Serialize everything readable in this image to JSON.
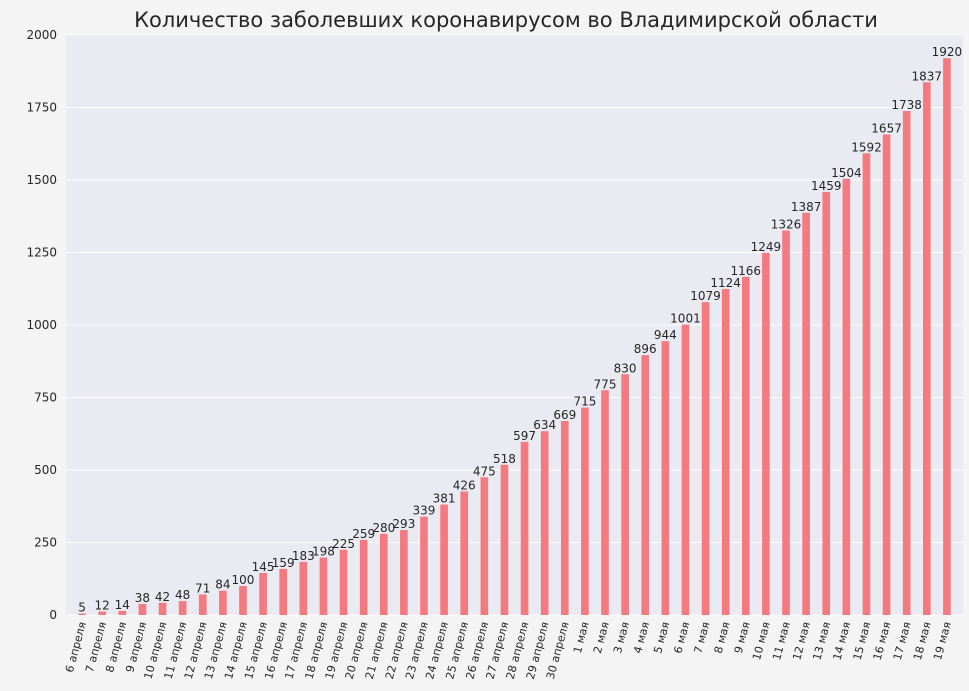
{
  "chart_data": {
    "type": "bar",
    "title": "Количество заболевших коронавирусом во Владимирской области",
    "xlabel": "",
    "ylabel": "",
    "ylim": [
      0,
      2000
    ],
    "yticks": [
      0,
      250,
      500,
      750,
      1000,
      1250,
      1500,
      1750,
      2000
    ],
    "grid": true,
    "legend": "none",
    "colors": {
      "bar": "#f57a80",
      "plot_bg": "#eaeaf2",
      "grid": "#ffffff",
      "figure_bg": "#f4f4f4"
    },
    "categories": [
      "6 апреля",
      "7 апреля",
      "8 апреля",
      "9 апреля",
      "10 апреля",
      "11 апреля",
      "12 апреля",
      "13 апреля",
      "14 апреля",
      "15 апреля",
      "16 апреля",
      "17 апреля",
      "18 апреля",
      "19 апреля",
      "20 апреля",
      "21 апреля",
      "22 апреля",
      "23 апреля",
      "24 апреля",
      "25 апреля",
      "26 апреля",
      "27 апреля",
      "28 апреля",
      "29 апреля",
      "30 апреля",
      "1 мая",
      "2 мая",
      "3 мая",
      "4 мая",
      "5 мая",
      "6 мая",
      "7 мая",
      "8 мая",
      "9 мая",
      "10 мая",
      "11 мая",
      "12 мая",
      "13 мая",
      "14 мая",
      "15 мая",
      "16 мая",
      "17 мая",
      "18 мая",
      "19 мая"
    ],
    "values": [
      5,
      12,
      14,
      38,
      42,
      48,
      71,
      84,
      100,
      145,
      159,
      183,
      198,
      225,
      259,
      280,
      293,
      339,
      381,
      426,
      475,
      518,
      597,
      634,
      669,
      715,
      775,
      830,
      896,
      944,
      1001,
      1079,
      1124,
      1166,
      1249,
      1326,
      1387,
      1459,
      1504,
      1592,
      1657,
      1738,
      1837,
      1920
    ]
  }
}
